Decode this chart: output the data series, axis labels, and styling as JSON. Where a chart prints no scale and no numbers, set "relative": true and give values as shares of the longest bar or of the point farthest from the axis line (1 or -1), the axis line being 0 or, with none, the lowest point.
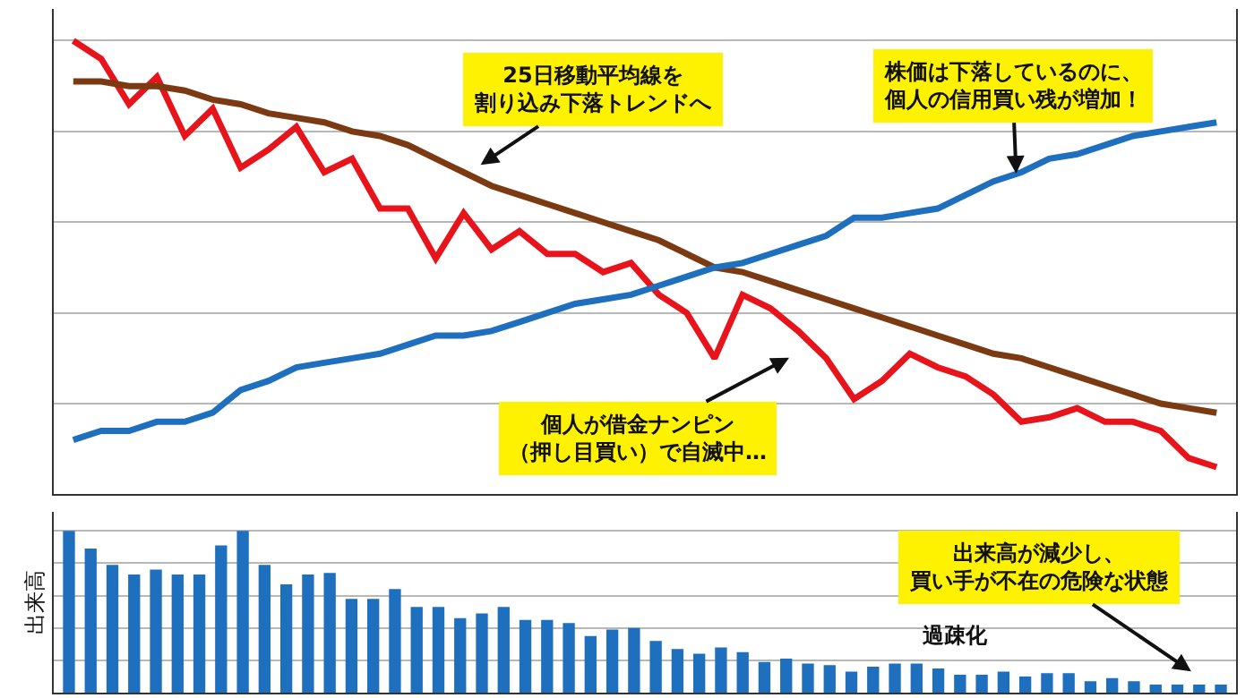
{
  "chart_data": [
    {
      "type": "line",
      "relative": true,
      "grid": true,
      "line_style": "solid",
      "categories": [
        null,
        null,
        null,
        null,
        null,
        null,
        null,
        null,
        null,
        null,
        null,
        null,
        null,
        null,
        null,
        null,
        null,
        null,
        null,
        null,
        null,
        null,
        null,
        null,
        null,
        null,
        null,
        null,
        null,
        null,
        null,
        null,
        null,
        null,
        null,
        null,
        null,
        null,
        null,
        null,
        null,
        null
      ],
      "series": [
        {
          "color": "#e8141c",
          "values": [
            1.0,
            0.96,
            0.86,
            0.92,
            0.79,
            0.85,
            0.72,
            0.76,
            0.81,
            0.71,
            0.74,
            0.63,
            0.63,
            0.52,
            0.62,
            0.54,
            0.58,
            0.53,
            0.53,
            0.49,
            0.51,
            0.44,
            0.4,
            0.3,
            0.44,
            0.41,
            0.36,
            0.3,
            0.21,
            0.25,
            0.31,
            0.28,
            0.26,
            0.22,
            0.16,
            0.17,
            0.19,
            0.16,
            0.16,
            0.14,
            0.08,
            0.06
          ]
        },
        {
          "color": "#7b3a12",
          "values": [
            0.91,
            0.91,
            0.9,
            0.9,
            0.89,
            0.87,
            0.86,
            0.84,
            0.83,
            0.82,
            0.8,
            0.79,
            0.77,
            0.74,
            0.71,
            0.68,
            0.66,
            0.64,
            0.62,
            0.6,
            0.58,
            0.56,
            0.53,
            0.5,
            0.49,
            0.47,
            0.45,
            0.43,
            0.41,
            0.39,
            0.37,
            0.35,
            0.33,
            0.31,
            0.3,
            0.28,
            0.26,
            0.24,
            0.22,
            0.2,
            0.19,
            0.18
          ]
        },
        {
          "color": "#1f6fbf",
          "values": [
            0.12,
            0.14,
            0.14,
            0.16,
            0.16,
            0.18,
            0.23,
            0.25,
            0.28,
            0.29,
            0.3,
            0.31,
            0.33,
            0.35,
            0.35,
            0.36,
            0.38,
            0.4,
            0.42,
            0.43,
            0.44,
            0.46,
            0.48,
            0.5,
            0.51,
            0.53,
            0.55,
            0.57,
            0.61,
            0.61,
            0.62,
            0.63,
            0.66,
            0.69,
            0.71,
            0.74,
            0.75,
            0.77,
            0.79,
            0.8,
            0.81,
            0.82
          ]
        }
      ],
      "annotations": [
        "25日移動平均線を割り込み下落トレンドへ",
        "株価は下落しているのに、個人の信用買い残が増加！",
        "個人が借金ナンピン（押し目買い）で自滅中…"
      ]
    },
    {
      "type": "bar",
      "relative": true,
      "grid": true,
      "color": "#1f6fbf",
      "ylabel": "出来高",
      "categories": [
        null,
        null,
        null,
        null,
        null,
        null,
        null,
        null,
        null,
        null,
        null,
        null,
        null,
        null,
        null,
        null,
        null,
        null,
        null,
        null,
        null,
        null,
        null,
        null,
        null,
        null,
        null,
        null,
        null,
        null,
        null,
        null,
        null,
        null,
        null,
        null,
        null,
        null,
        null,
        null,
        null,
        null,
        null,
        null,
        null,
        null,
        null,
        null,
        null,
        null,
        null,
        null,
        null,
        null
      ],
      "values": [
        1.0,
        0.89,
        0.79,
        0.73,
        0.76,
        0.73,
        0.73,
        0.91,
        1.0,
        0.79,
        0.67,
        0.73,
        0.74,
        0.58,
        0.58,
        0.64,
        0.53,
        0.53,
        0.46,
        0.49,
        0.53,
        0.45,
        0.45,
        0.43,
        0.35,
        0.39,
        0.4,
        0.32,
        0.27,
        0.24,
        0.28,
        0.25,
        0.19,
        0.21,
        0.18,
        0.17,
        0.13,
        0.16,
        0.18,
        0.18,
        0.15,
        0.11,
        0.11,
        0.13,
        0.1,
        0.12,
        0.12,
        0.07,
        0.09,
        0.07,
        0.05,
        0.05,
        0.05,
        0.05
      ],
      "annotations": [
        "出来高が減少し、買い手が不在の危険な状態",
        "過疎化"
      ]
    }
  ]
}
